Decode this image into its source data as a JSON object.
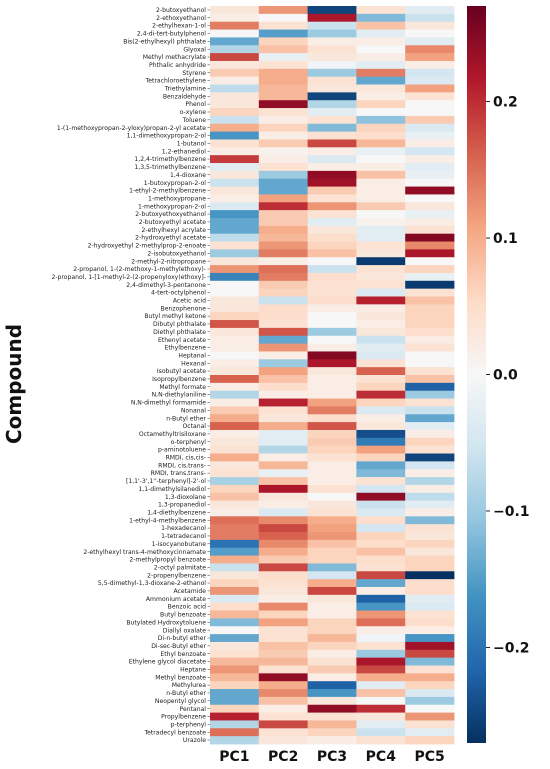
{
  "chart_data": {
    "type": "heatmap",
    "ylabel": "Compound",
    "xlabel": "",
    "columns": [
      "PC1",
      "PC2",
      "PC3",
      "PC4",
      "PC5"
    ],
    "colorbar": {
      "vmin": -0.27,
      "vmax": 0.27,
      "ticks": [
        0.2,
        0.1,
        0.0,
        -0.1,
        -0.2
      ],
      "tick_labels": [
        "0.2",
        "0.1",
        "0.0",
        "−0.1",
        "−0.2"
      ],
      "colormap": "RdBu_r"
    },
    "rows": [
      "2-butoxyethanol",
      "2-ethoxyethanol",
      "2-ethylhexan-1-ol",
      "2,4-di-tert-butylphenol",
      "Bis(2-ethylhexyl) phthalate",
      "Glyoxal",
      "Methyl methacrylate",
      "Phthalic anhydride",
      "Styrene",
      "Tetrachloroethylene",
      "Triethylamine",
      "Benzaldehyde",
      "Phenol",
      "o-xylene",
      "Toluene",
      "1-(1-methoxypropan-2-yloxy)propan-2-yl acetate",
      "1,1-dimethoxypropan-2-ol",
      "1-butanol",
      "1,2-ethanediol",
      "1,2,4-trimethylbenzene",
      "1,3,5-trimethylbenzene",
      "1,4-dioxane",
      "1-butoxypropan-2-ol",
      "1-ethyl-2-methylbenzene",
      "1-methoxypropane",
      "1-methoxypropan-2-ol",
      "2-butoxyethoxyethanol",
      "2-butoxyethyl acetate",
      "2-ethylhexyl acrylate",
      "2-hydroxyethyl acetate",
      "2-hydroxyethyl 2-methylprop-2-enoate",
      "2-isobutoxyethanol",
      "2-methyl-2-nitropropane",
      "2-propanol, 1-(2-methoxy-1-methylethoxy)-",
      "2-propanol, 1-[1-methyl-2-(2-propenyloxy)ethoxy]-",
      "2,4-dimethyl-3-pentanone",
      "4-tert-octylphenol",
      "Acetic acid",
      "Benzophenone",
      "Butyl methyl ketone",
      "Dibutyl phthalate",
      "Diethyl phthalate",
      "Ethenyl acetate",
      "Ethylbenzene",
      "Heptanal",
      "Hexanal",
      "Isobutyl acetate",
      "Isopropylbenzene",
      "Methyl formate",
      "N,N-diethylaniline",
      "N,N-dimethyl formamide",
      "Nonanal",
      "n-Butyl ether",
      "Octanal",
      "Octamethyltrisiloxane",
      "o-terphenyl",
      "p-aminotoluene",
      "RMDI, cis,cis-",
      "RMDI, cis,trans-",
      "RMDI, trans,trans-",
      "[1,1'-3',1''-terphenyl]-2'-ol",
      "1,1-dimethylsilanediol",
      "1,3-dioxolane",
      "1,3-propanediol",
      "1,4-diethylbenzene",
      "1-ethyl-4-methylbenzene",
      "1-hexadecanol",
      "1-tetradecanol",
      "1-isocyanobutane",
      "2-ethylhexyl trans-4-methoxycinnamate",
      "2-methylpropyl benzoate",
      "2-octyl palmitate",
      "2-propenylbenzene",
      "5,5-dimethyl-1,3-dioxane-2-ethanol",
      "Acetamide",
      "Ammonium acetate",
      "Benzoic acid",
      "Butyl benzoate",
      "Butylated Hydroxytoluene",
      "Diallyl oxalate",
      "Di-n-butyl ether",
      "Di-sec-Butyl ether",
      "Ethyl benzoate",
      "Ethylene glycol diacetate",
      "Heptane",
      "Methyl benzoate",
      "Methylurea",
      "n-Butyl ether",
      "Neopentyl glycol",
      "Pentanal",
      "Propylbenzene",
      "p-terphenyl",
      "Tetradecyl benzoate",
      "Urazole"
    ],
    "values": [
      [
        0.03,
        0.12,
        -0.25,
        0.04,
        -0.03
      ],
      [
        0.02,
        0.0,
        0.22,
        -0.12,
        -0.06
      ],
      [
        0.14,
        0.04,
        -0.06,
        0.08,
        0.03
      ],
      [
        0.0,
        -0.15,
        -0.1,
        -0.03,
        0.0
      ],
      [
        -0.14,
        0.06,
        0.02,
        0.02,
        -0.03
      ],
      [
        -0.08,
        0.08,
        0.04,
        0.0,
        0.13
      ],
      [
        0.18,
        -0.02,
        0.03,
        0.02,
        0.11
      ],
      [
        0.03,
        0.04,
        -0.01,
        -0.03,
        0.02
      ],
      [
        0.07,
        0.1,
        -0.1,
        0.14,
        -0.05
      ],
      [
        0.02,
        0.1,
        0.04,
        -0.14,
        -0.04
      ],
      [
        -0.07,
        0.09,
        0.03,
        0.03,
        0.11
      ],
      [
        0.03,
        0.09,
        -0.25,
        0.02,
        0.04
      ],
      [
        0.03,
        0.24,
        -0.08,
        0.06,
        0.0
      ],
      [
        0.06,
        0.04,
        -0.03,
        0.0,
        0.0
      ],
      [
        -0.06,
        0.02,
        0.04,
        -0.11,
        0.07
      ],
      [
        0.1,
        0.06,
        -0.12,
        0.06,
        -0.04
      ],
      [
        -0.16,
        0.02,
        0.04,
        0.05,
        -0.02
      ],
      [
        0.04,
        0.07,
        0.18,
        0.09,
        0.02
      ],
      [
        0.02,
        0.01,
        0.02,
        -0.02,
        -0.05
      ],
      [
        0.19,
        0.02,
        -0.04,
        0.0,
        0.02
      ],
      [
        -0.03,
        0.04,
        0.02,
        0.02,
        -0.03
      ],
      [
        0.03,
        -0.1,
        0.24,
        0.08,
        -0.02
      ],
      [
        -0.06,
        -0.14,
        0.23,
        0.02,
        0.0
      ],
      [
        0.03,
        -0.14,
        0.07,
        0.02,
        0.24
      ],
      [
        0.02,
        0.11,
        0.04,
        0.02,
        0.0
      ],
      [
        -0.04,
        0.2,
        0.12,
        0.07,
        0.03
      ],
      [
        -0.16,
        0.07,
        0.04,
        0.0,
        -0.02
      ],
      [
        -0.14,
        0.07,
        -0.03,
        0.01,
        0.02
      ],
      [
        -0.14,
        0.1,
        0.03,
        -0.03,
        0.04
      ],
      [
        -0.07,
        0.09,
        0.05,
        -0.03,
        0.25
      ],
      [
        0.04,
        0.12,
        0.06,
        0.04,
        0.13
      ],
      [
        -0.1,
        0.14,
        0.08,
        0.03,
        0.22
      ],
      [
        0.03,
        0.02,
        0.0,
        -0.26,
        0.0
      ],
      [
        0.12,
        0.15,
        -0.06,
        0.04,
        0.06
      ],
      [
        -0.18,
        0.14,
        0.05,
        0.03,
        -0.02
      ],
      [
        0.0,
        0.07,
        0.04,
        0.04,
        -0.26
      ],
      [
        0.0,
        0.06,
        0.04,
        -0.04,
        0.04
      ],
      [
        0.03,
        -0.06,
        0.05,
        0.21,
        0.08
      ],
      [
        0.03,
        0.05,
        0.02,
        0.02,
        0.06
      ],
      [
        0.06,
        0.05,
        0.0,
        0.03,
        0.06
      ],
      [
        0.17,
        0.04,
        0.0,
        0.02,
        0.06
      ],
      [
        0.03,
        0.17,
        -0.1,
        0.03,
        0.05
      ],
      [
        0.02,
        -0.14,
        0.0,
        -0.06,
        0.02
      ],
      [
        0.02,
        0.12,
        0.02,
        -0.03,
        0.04
      ],
      [
        0.0,
        0.02,
        0.25,
        -0.04,
        0.0
      ],
      [
        0.02,
        -0.1,
        0.22,
        0.04,
        0.0
      ],
      [
        0.03,
        0.11,
        0.03,
        0.16,
        0.04
      ],
      [
        0.16,
        0.08,
        0.02,
        0.04,
        0.08
      ],
      [
        0.02,
        0.05,
        0.02,
        0.06,
        -0.22
      ],
      [
        -0.08,
        0.02,
        0.02,
        0.2,
        -0.1
      ],
      [
        0.02,
        0.21,
        0.11,
        0.06,
        0.04
      ],
      [
        0.07,
        0.04,
        0.14,
        -0.04,
        -0.06
      ],
      [
        0.1,
        0.03,
        0.05,
        0.02,
        -0.14
      ],
      [
        0.16,
        0.1,
        0.17,
        0.03,
        -0.03
      ],
      [
        0.02,
        -0.03,
        0.06,
        -0.24,
        0.02
      ],
      [
        0.03,
        -0.03,
        0.07,
        -0.19,
        0.06
      ],
      [
        0.04,
        -0.08,
        0.06,
        0.11,
        0.04
      ],
      [
        0.1,
        0.02,
        0.04,
        0.06,
        -0.25
      ],
      [
        0.03,
        0.09,
        0.02,
        -0.14,
        -0.05
      ],
      [
        0.04,
        -0.02,
        0.02,
        -0.12,
        0.02
      ],
      [
        -0.09,
        0.08,
        0.02,
        0.04,
        -0.08
      ],
      [
        0.06,
        0.22,
        0.04,
        -0.05,
        0.02
      ],
      [
        0.08,
        0.03,
        0.0,
        0.24,
        -0.07
      ],
      [
        0.03,
        0.02,
        0.03,
        -0.06,
        -0.03
      ],
      [
        0.02,
        -0.04,
        0.04,
        -0.04,
        0.02
      ],
      [
        0.15,
        0.13,
        0.1,
        0.05,
        -0.12
      ],
      [
        0.14,
        0.18,
        0.11,
        -0.05,
        0.04
      ],
      [
        0.14,
        0.16,
        0.12,
        0.06,
        0.03
      ],
      [
        -0.2,
        0.13,
        0.08,
        0.05,
        0.06
      ],
      [
        -0.15,
        0.1,
        0.06,
        0.08,
        0.03
      ],
      [
        0.1,
        0.07,
        0.06,
        0.05,
        0.06
      ],
      [
        -0.06,
        0.18,
        -0.12,
        0.04,
        0.06
      ],
      [
        0.03,
        0.05,
        -0.05,
        0.18,
        -0.27
      ],
      [
        0.06,
        0.04,
        0.1,
        -0.14,
        0.05
      ],
      [
        0.12,
        0.03,
        0.18,
        0.02,
        0.05
      ],
      [
        -0.04,
        0.02,
        0.03,
        -0.22,
        -0.03
      ],
      [
        0.05,
        0.13,
        0.02,
        -0.16,
        -0.04
      ],
      [
        0.09,
        0.06,
        0.02,
        0.12,
        0.04
      ],
      [
        -0.12,
        0.11,
        0.06,
        0.15,
        0.05
      ],
      [
        0.0,
        0.04,
        0.06,
        0.02,
        0.02
      ],
      [
        -0.14,
        0.04,
        0.09,
        -0.01,
        -0.16
      ],
      [
        0.03,
        0.08,
        0.06,
        0.04,
        0.23
      ],
      [
        0.04,
        0.07,
        0.02,
        -0.1,
        0.18
      ],
      [
        0.09,
        0.09,
        0.04,
        0.22,
        -0.12
      ],
      [
        0.12,
        0.04,
        0.07,
        0.18,
        0.04
      ],
      [
        0.09,
        0.24,
        0.02,
        0.1,
        0.1
      ],
      [
        0.06,
        0.1,
        -0.22,
        -0.03,
        0.06
      ],
      [
        -0.14,
        0.13,
        -0.16,
        0.08,
        -0.04
      ],
      [
        -0.14,
        0.08,
        0.03,
        0.0,
        -0.1
      ],
      [
        0.06,
        0.02,
        0.24,
        0.2,
        0.0
      ],
      [
        0.21,
        0.04,
        0.04,
        0.03,
        0.12
      ],
      [
        -0.08,
        0.18,
        0.09,
        -0.03,
        0.04
      ],
      [
        0.15,
        0.04,
        0.06,
        -0.06,
        -0.03
      ],
      [
        -0.08,
        0.03,
        0.02,
        0.04,
        0.06
      ]
    ]
  }
}
